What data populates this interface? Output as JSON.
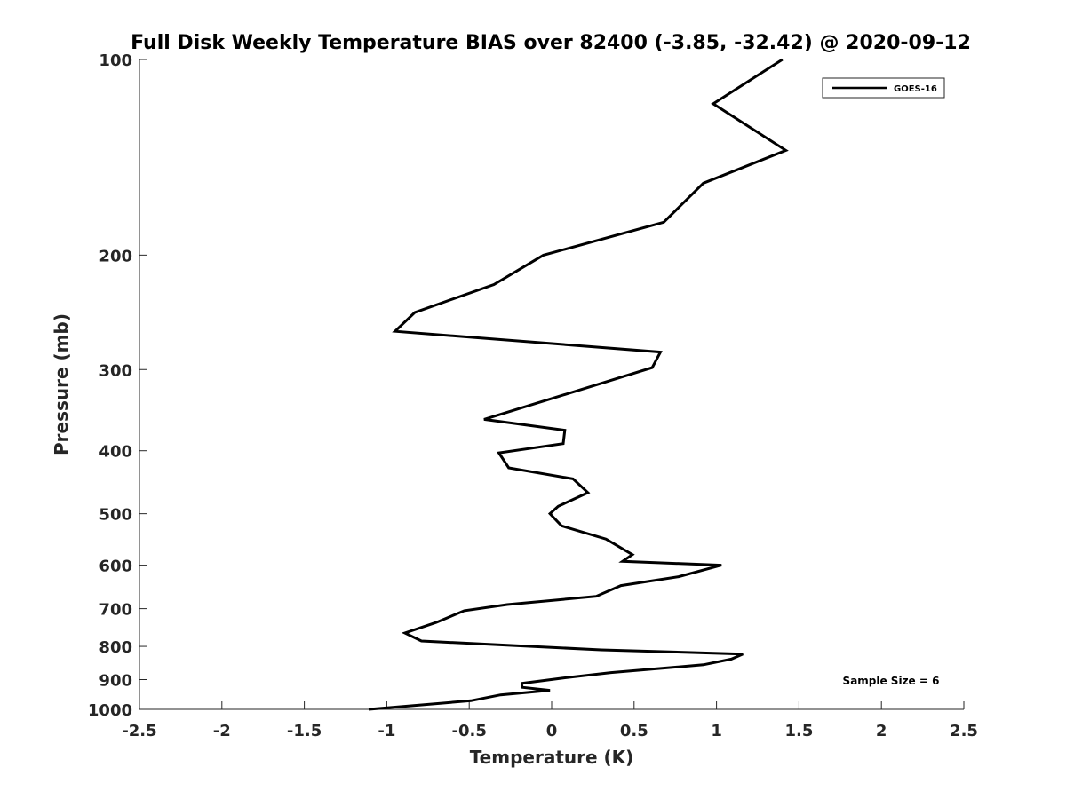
{
  "chart_data": {
    "type": "line",
    "title": "Full Disk Weekly Temperature BIAS over 82400 (-3.85, -32.42) @ 2020-09-12",
    "xlabel": "Temperature (K)",
    "ylabel": "Pressure (mb)",
    "xlim": [
      -2.5,
      2.5
    ],
    "ylim": [
      1000,
      100
    ],
    "y_scale": "log",
    "y_reversed": true,
    "grid": false,
    "legend_position": "top-right",
    "x_ticks": [
      "-2.5",
      "-2",
      "-1.5",
      "-1",
      "-0.5",
      "0",
      "0.5",
      "1",
      "1.5",
      "2",
      "2.5"
    ],
    "y_ticks": [
      "100",
      "200",
      "300",
      "400",
      "500",
      "600",
      "700",
      "800",
      "900",
      "1000"
    ],
    "annotation": "Sample Size = 6",
    "series": [
      {
        "name": "GOES-16",
        "color": "#000000",
        "x": [
          1.4,
          0.98,
          1.42,
          0.92,
          0.68,
          -0.05,
          -0.35,
          -0.83,
          -0.95,
          0.66,
          0.61,
          -0.41,
          0.08,
          0.07,
          -0.32,
          -0.26,
          0.13,
          0.22,
          0.04,
          -0.01,
          0.06,
          0.33,
          0.49,
          0.43,
          1.03,
          0.77,
          0.42,
          0.27,
          -0.27,
          -0.53,
          -0.7,
          -0.89,
          -0.79,
          0.3,
          1.16,
          1.09,
          0.92,
          0.36,
          0.07,
          -0.18,
          -0.18,
          -0.01,
          -0.31,
          -0.49,
          -1.11
        ],
        "y": [
          100,
          117,
          138,
          155,
          178,
          200,
          222,
          245,
          262,
          282,
          298,
          358,
          372,
          390,
          403,
          425,
          442,
          464,
          487,
          500,
          522,
          547,
          578,
          592,
          600,
          625,
          645,
          670,
          690,
          705,
          735,
          763,
          785,
          810,
          822,
          837,
          854,
          878,
          895,
          912,
          925,
          935,
          950,
          970,
          1000
        ]
      }
    ]
  }
}
